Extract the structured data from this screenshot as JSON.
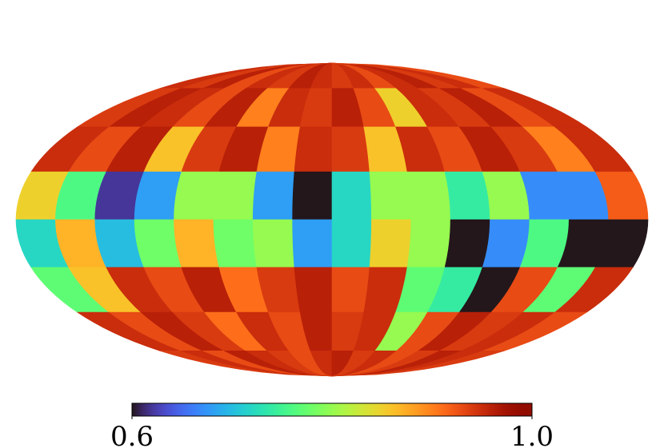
{
  "chart_data": {
    "type": "mollweide",
    "colormap": "turbo",
    "clim": [
      0.6,
      1.0
    ],
    "colorbar_ticks": [
      0.6,
      {
        "value": 1.0,
        "label": "1.0"
      }
    ],
    "values": [
      [
        0.95,
        0.94,
        0.96,
        0.93,
        0.95,
        0.94,
        0.96,
        0.95,
        0.94,
        0.95,
        0.93,
        0.95,
        0.96,
        0.94,
        0.95,
        0.93
      ],
      [
        0.94,
        0.96,
        0.95,
        0.93,
        0.96,
        0.9,
        0.95,
        0.94,
        0.96,
        0.93,
        0.85,
        0.95,
        0.94,
        0.96,
        0.93,
        0.95
      ],
      [
        0.95,
        0.93,
        0.96,
        0.86,
        0.94,
        0.96,
        0.9,
        0.95,
        0.94,
        0.86,
        0.95,
        0.93,
        0.96,
        0.94,
        0.9,
        0.95
      ],
      [
        0.85,
        0.76,
        0.62,
        0.68,
        0.8,
        0.8,
        0.68,
        0.6,
        0.72,
        0.8,
        0.8,
        0.74,
        0.8,
        0.67,
        0.67,
        0.92
      ],
      [
        0.72,
        0.87,
        0.7,
        0.78,
        0.87,
        0.78,
        0.8,
        0.68,
        0.72,
        0.85,
        0.8,
        0.6,
        0.67,
        0.76,
        0.6,
        0.6
      ],
      [
        0.77,
        0.86,
        0.95,
        0.93,
        0.96,
        0.91,
        0.94,
        0.96,
        0.93,
        0.95,
        0.77,
        0.74,
        0.6,
        0.93,
        0.77,
        0.95
      ],
      [
        0.95,
        0.93,
        0.96,
        0.94,
        0.91,
        0.95,
        0.93,
        0.96,
        0.94,
        0.95,
        0.8,
        0.93,
        0.96,
        0.94,
        0.95,
        0.93
      ],
      [
        0.94,
        0.95,
        0.93,
        0.96,
        0.95,
        0.94,
        0.93,
        0.95,
        0.96,
        0.94,
        0.95,
        0.93,
        0.94,
        0.96,
        0.95,
        0.94
      ]
    ]
  }
}
